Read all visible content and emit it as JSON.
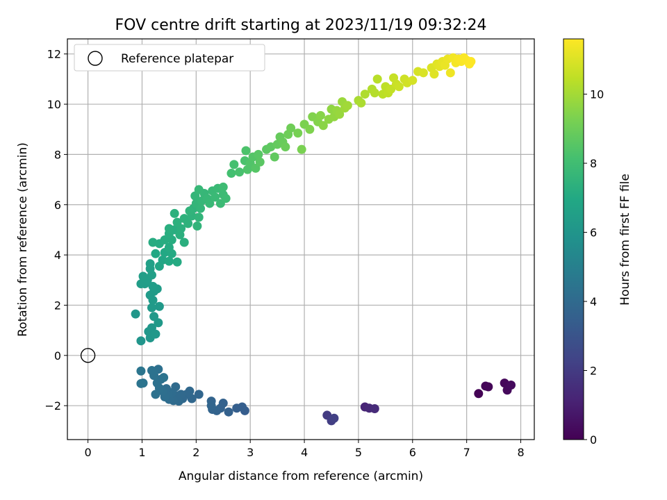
{
  "chart_data": {
    "type": "scatter",
    "title": "FOV centre drift starting at 2023/11/19 09:32:24",
    "xlabel": "Angular distance from reference (arcmin)",
    "ylabel": "Rotation from reference (arcmin)",
    "xlim": [
      -0.38,
      8.25
    ],
    "ylim": [
      -3.35,
      12.6
    ],
    "xticks": [
      0,
      1,
      2,
      3,
      4,
      5,
      6,
      7,
      8
    ],
    "yticks": [
      -2,
      0,
      2,
      4,
      6,
      8,
      10,
      12
    ],
    "grid": true,
    "legend": {
      "placement": "top-left",
      "entries": [
        "Reference platepar"
      ]
    },
    "reference_point": {
      "label": "Reference platepar",
      "x": 0,
      "y": 0,
      "marker": "open-circle"
    },
    "colorbar": {
      "label": "Hours from first FF file",
      "colormap": "viridis",
      "range": [
        0,
        11.6
      ],
      "ticks": [
        0,
        2,
        4,
        6,
        8,
        10
      ]
    },
    "series": [
      {
        "color_by": "hours",
        "points": [
          {
            "x": 7.22,
            "y": -1.52,
            "c": 0.05
          },
          {
            "x": 7.35,
            "y": -1.22,
            "c": 0.1
          },
          {
            "x": 7.4,
            "y": -1.25,
            "c": 0.15
          },
          {
            "x": 7.7,
            "y": -1.1,
            "c": 0.2
          },
          {
            "x": 7.75,
            "y": -1.38,
            "c": 0.25
          },
          {
            "x": 7.82,
            "y": -1.18,
            "c": 0.3
          },
          {
            "x": 5.12,
            "y": -2.05,
            "c": 1.2
          },
          {
            "x": 5.2,
            "y": -2.1,
            "c": 1.3
          },
          {
            "x": 5.3,
            "y": -2.12,
            "c": 1.4
          },
          {
            "x": 4.42,
            "y": -2.38,
            "c": 2.0
          },
          {
            "x": 4.5,
            "y": -2.6,
            "c": 2.1
          },
          {
            "x": 4.55,
            "y": -2.5,
            "c": 2.2
          },
          {
            "x": 2.9,
            "y": -2.2,
            "c": 3.4
          },
          {
            "x": 2.85,
            "y": -2.05,
            "c": 3.45
          },
          {
            "x": 2.75,
            "y": -2.1,
            "c": 3.5
          },
          {
            "x": 2.6,
            "y": -2.25,
            "c": 3.55
          },
          {
            "x": 2.5,
            "y": -1.9,
            "c": 3.6
          },
          {
            "x": 2.45,
            "y": -2.1,
            "c": 3.62
          },
          {
            "x": 2.38,
            "y": -2.2,
            "c": 3.65
          },
          {
            "x": 2.3,
            "y": -2.15,
            "c": 3.7
          },
          {
            "x": 2.28,
            "y": -1.82,
            "c": 3.72
          },
          {
            "x": 2.28,
            "y": -2.0,
            "c": 3.75
          },
          {
            "x": 2.05,
            "y": -1.55,
            "c": 3.8
          },
          {
            "x": 1.92,
            "y": -1.72,
            "c": 3.85
          },
          {
            "x": 1.88,
            "y": -1.42,
            "c": 3.88
          },
          {
            "x": 1.82,
            "y": -1.55,
            "c": 3.9
          },
          {
            "x": 1.75,
            "y": -1.72,
            "c": 3.92
          },
          {
            "x": 1.72,
            "y": -1.55,
            "c": 3.95
          },
          {
            "x": 1.68,
            "y": -1.82,
            "c": 3.98
          },
          {
            "x": 1.63,
            "y": -1.6,
            "c": 4.0
          },
          {
            "x": 1.62,
            "y": -1.25,
            "c": 4.02
          },
          {
            "x": 1.58,
            "y": -1.8,
            "c": 4.05
          },
          {
            "x": 1.55,
            "y": -1.48,
            "c": 4.08
          },
          {
            "x": 1.5,
            "y": -1.75,
            "c": 4.1
          },
          {
            "x": 1.48,
            "y": -1.52,
            "c": 4.12
          },
          {
            "x": 1.45,
            "y": -1.32,
            "c": 4.15
          },
          {
            "x": 1.42,
            "y": -1.65,
            "c": 4.18
          },
          {
            "x": 1.38,
            "y": -1.42,
            "c": 4.2
          },
          {
            "x": 1.35,
            "y": -0.95,
            "c": 4.22
          },
          {
            "x": 1.32,
            "y": -1.3,
            "c": 4.25
          },
          {
            "x": 1.3,
            "y": -0.55,
            "c": 4.28
          },
          {
            "x": 1.28,
            "y": -1.1,
            "c": 4.3
          },
          {
            "x": 1.25,
            "y": -1.55,
            "c": 4.32
          },
          {
            "x": 1.22,
            "y": -0.8,
            "c": 4.35
          },
          {
            "x": 1.18,
            "y": -0.6,
            "c": 4.38
          },
          {
            "x": 1.4,
            "y": -0.88,
            "c": 4.4
          },
          {
            "x": 1.02,
            "y": -1.1,
            "c": 4.42
          },
          {
            "x": 0.98,
            "y": -1.12,
            "c": 4.45
          },
          {
            "x": 0.98,
            "y": -0.62,
            "c": 4.48
          },
          {
            "x": 0.98,
            "y": 0.58,
            "c": 6.0
          },
          {
            "x": 0.88,
            "y": 1.65,
            "c": 6.05
          },
          {
            "x": 1.15,
            "y": 0.7,
            "c": 6.08
          },
          {
            "x": 1.12,
            "y": 0.95,
            "c": 6.1
          },
          {
            "x": 1.18,
            "y": 1.1,
            "c": 6.12
          },
          {
            "x": 1.25,
            "y": 0.85,
            "c": 6.15
          },
          {
            "x": 1.22,
            "y": 1.55,
            "c": 6.18
          },
          {
            "x": 1.3,
            "y": 1.3,
            "c": 6.2
          },
          {
            "x": 1.32,
            "y": 1.95,
            "c": 6.22
          },
          {
            "x": 1.18,
            "y": 1.9,
            "c": 6.25
          },
          {
            "x": 1.2,
            "y": 2.2,
            "c": 6.28
          },
          {
            "x": 1.15,
            "y": 2.4,
            "c": 6.3
          },
          {
            "x": 1.22,
            "y": 2.55,
            "c": 6.32
          },
          {
            "x": 1.28,
            "y": 2.65,
            "c": 6.35
          },
          {
            "x": 1.2,
            "y": 2.75,
            "c": 6.38
          },
          {
            "x": 1.05,
            "y": 2.85,
            "c": 6.4
          },
          {
            "x": 0.98,
            "y": 2.85,
            "c": 6.42
          },
          {
            "x": 1.1,
            "y": 3.0,
            "c": 6.45
          },
          {
            "x": 1.02,
            "y": 3.15,
            "c": 6.48
          },
          {
            "x": 1.18,
            "y": 3.2,
            "c": 6.5
          },
          {
            "x": 1.15,
            "y": 3.45,
            "c": 6.52
          },
          {
            "x": 1.15,
            "y": 3.65,
            "c": 6.55
          },
          {
            "x": 1.32,
            "y": 3.55,
            "c": 6.8
          },
          {
            "x": 1.38,
            "y": 3.8,
            "c": 6.85
          },
          {
            "x": 1.25,
            "y": 4.05,
            "c": 6.9
          },
          {
            "x": 1.42,
            "y": 4.1,
            "c": 6.95
          },
          {
            "x": 1.5,
            "y": 3.75,
            "c": 7.0
          },
          {
            "x": 1.55,
            "y": 4.05,
            "c": 7.02
          },
          {
            "x": 1.65,
            "y": 3.72,
            "c": 7.05
          },
          {
            "x": 1.5,
            "y": 4.3,
            "c": 7.08
          },
          {
            "x": 1.32,
            "y": 4.45,
            "c": 7.1
          },
          {
            "x": 1.2,
            "y": 4.5,
            "c": 7.12
          },
          {
            "x": 1.42,
            "y": 4.6,
            "c": 7.15
          },
          {
            "x": 1.55,
            "y": 4.6,
            "c": 7.18
          },
          {
            "x": 1.5,
            "y": 4.85,
            "c": 7.2
          },
          {
            "x": 1.6,
            "y": 5.0,
            "c": 7.22
          },
          {
            "x": 1.5,
            "y": 5.05,
            "c": 7.25
          },
          {
            "x": 1.78,
            "y": 4.5,
            "c": 7.28
          },
          {
            "x": 1.7,
            "y": 4.8,
            "c": 7.3
          },
          {
            "x": 1.72,
            "y": 5.05,
            "c": 7.32
          },
          {
            "x": 1.65,
            "y": 5.3,
            "c": 7.35
          },
          {
            "x": 1.6,
            "y": 5.65,
            "c": 7.38
          },
          {
            "x": 1.78,
            "y": 5.45,
            "c": 7.4
          },
          {
            "x": 1.85,
            "y": 5.25,
            "c": 7.42
          },
          {
            "x": 1.92,
            "y": 5.55,
            "c": 7.45
          },
          {
            "x": 1.95,
            "y": 5.85,
            "c": 7.48
          },
          {
            "x": 1.88,
            "y": 5.75,
            "c": 7.5
          },
          {
            "x": 2.02,
            "y": 5.15,
            "c": 7.52
          },
          {
            "x": 2.05,
            "y": 5.5,
            "c": 7.55
          },
          {
            "x": 2.0,
            "y": 6.05,
            "c": 7.58
          },
          {
            "x": 2.08,
            "y": 5.85,
            "c": 7.6
          },
          {
            "x": 1.98,
            "y": 6.35,
            "c": 7.62
          },
          {
            "x": 2.1,
            "y": 6.15,
            "c": 7.65
          },
          {
            "x": 2.15,
            "y": 6.45,
            "c": 7.68
          },
          {
            "x": 2.05,
            "y": 6.6,
            "c": 7.7
          },
          {
            "x": 2.2,
            "y": 6.25,
            "c": 7.72
          },
          {
            "x": 2.25,
            "y": 6.05,
            "c": 7.75
          },
          {
            "x": 2.3,
            "y": 6.55,
            "c": 7.78
          },
          {
            "x": 2.35,
            "y": 6.3,
            "c": 7.8
          },
          {
            "x": 2.4,
            "y": 6.65,
            "c": 7.82
          },
          {
            "x": 2.45,
            "y": 6.05,
            "c": 7.85
          },
          {
            "x": 2.5,
            "y": 6.4,
            "c": 7.88
          },
          {
            "x": 2.55,
            "y": 6.25,
            "c": 7.9
          },
          {
            "x": 2.5,
            "y": 6.7,
            "c": 7.92
          },
          {
            "x": 2.65,
            "y": 7.25,
            "c": 8.1
          },
          {
            "x": 2.7,
            "y": 7.6,
            "c": 8.15
          },
          {
            "x": 2.8,
            "y": 7.3,
            "c": 8.2
          },
          {
            "x": 2.9,
            "y": 7.75,
            "c": 8.25
          },
          {
            "x": 2.92,
            "y": 8.15,
            "c": 8.3
          },
          {
            "x": 2.95,
            "y": 7.4,
            "c": 8.35
          },
          {
            "x": 3.0,
            "y": 7.65,
            "c": 8.4
          },
          {
            "x": 3.05,
            "y": 7.9,
            "c": 8.45
          },
          {
            "x": 3.1,
            "y": 7.45,
            "c": 8.5
          },
          {
            "x": 3.15,
            "y": 8.0,
            "c": 8.55
          },
          {
            "x": 3.18,
            "y": 7.7,
            "c": 8.6
          },
          {
            "x": 3.3,
            "y": 8.2,
            "c": 8.65
          },
          {
            "x": 3.38,
            "y": 8.3,
            "c": 8.7
          },
          {
            "x": 3.45,
            "y": 7.9,
            "c": 8.75
          },
          {
            "x": 3.5,
            "y": 8.4,
            "c": 8.8
          },
          {
            "x": 3.55,
            "y": 8.7,
            "c": 8.85
          },
          {
            "x": 3.6,
            "y": 8.5,
            "c": 8.9
          },
          {
            "x": 3.65,
            "y": 8.3,
            "c": 8.95
          },
          {
            "x": 3.7,
            "y": 8.8,
            "c": 9.0
          },
          {
            "x": 3.75,
            "y": 9.05,
            "c": 9.05
          },
          {
            "x": 3.88,
            "y": 8.85,
            "c": 9.2
          },
          {
            "x": 3.95,
            "y": 8.2,
            "c": 9.25
          },
          {
            "x": 4.0,
            "y": 9.2,
            "c": 9.3
          },
          {
            "x": 4.1,
            "y": 9.0,
            "c": 9.35
          },
          {
            "x": 4.15,
            "y": 9.5,
            "c": 9.4
          },
          {
            "x": 4.25,
            "y": 9.3,
            "c": 9.45
          },
          {
            "x": 4.3,
            "y": 9.55,
            "c": 9.5
          },
          {
            "x": 4.35,
            "y": 9.15,
            "c": 9.55
          },
          {
            "x": 4.45,
            "y": 9.4,
            "c": 9.6
          },
          {
            "x": 4.5,
            "y": 9.8,
            "c": 9.65
          },
          {
            "x": 4.55,
            "y": 9.5,
            "c": 9.7
          },
          {
            "x": 4.6,
            "y": 9.75,
            "c": 9.75
          },
          {
            "x": 4.65,
            "y": 9.6,
            "c": 9.8
          },
          {
            "x": 4.7,
            "y": 10.1,
            "c": 9.85
          },
          {
            "x": 4.75,
            "y": 9.85,
            "c": 9.9
          },
          {
            "x": 4.8,
            "y": 9.95,
            "c": 9.95
          },
          {
            "x": 5.0,
            "y": 10.15,
            "c": 10.1
          },
          {
            "x": 5.05,
            "y": 10.05,
            "c": 10.15
          },
          {
            "x": 5.12,
            "y": 10.4,
            "c": 10.2
          },
          {
            "x": 5.25,
            "y": 10.6,
            "c": 10.25
          },
          {
            "x": 5.3,
            "y": 10.45,
            "c": 10.3
          },
          {
            "x": 5.35,
            "y": 11.0,
            "c": 10.35
          },
          {
            "x": 5.45,
            "y": 10.4,
            "c": 10.4
          },
          {
            "x": 5.5,
            "y": 10.7,
            "c": 10.45
          },
          {
            "x": 5.55,
            "y": 10.45,
            "c": 10.5
          },
          {
            "x": 5.6,
            "y": 10.6,
            "c": 10.55
          },
          {
            "x": 5.65,
            "y": 11.05,
            "c": 10.6
          },
          {
            "x": 5.7,
            "y": 10.8,
            "c": 10.65
          },
          {
            "x": 5.75,
            "y": 10.7,
            "c": 10.7
          },
          {
            "x": 5.85,
            "y": 11.0,
            "c": 10.75
          },
          {
            "x": 5.9,
            "y": 10.85,
            "c": 10.8
          },
          {
            "x": 6.0,
            "y": 10.95,
            "c": 10.85
          },
          {
            "x": 6.1,
            "y": 11.3,
            "c": 10.9
          },
          {
            "x": 6.2,
            "y": 11.25,
            "c": 10.95
          },
          {
            "x": 6.35,
            "y": 11.45,
            "c": 11.0
          },
          {
            "x": 6.4,
            "y": 11.2,
            "c": 11.05
          },
          {
            "x": 6.45,
            "y": 11.6,
            "c": 11.1
          },
          {
            "x": 6.5,
            "y": 11.5,
            "c": 11.15
          },
          {
            "x": 6.55,
            "y": 11.7,
            "c": 11.2
          },
          {
            "x": 6.6,
            "y": 11.55,
            "c": 11.25
          },
          {
            "x": 6.65,
            "y": 11.8,
            "c": 11.3
          },
          {
            "x": 6.7,
            "y": 11.25,
            "c": 11.35
          },
          {
            "x": 6.75,
            "y": 11.85,
            "c": 11.4
          },
          {
            "x": 6.8,
            "y": 11.65,
            "c": 11.45
          },
          {
            "x": 6.85,
            "y": 11.8,
            "c": 11.5
          },
          {
            "x": 6.9,
            "y": 11.7,
            "c": 11.52
          },
          {
            "x": 6.95,
            "y": 11.85,
            "c": 11.55
          },
          {
            "x": 7.0,
            "y": 11.75,
            "c": 11.57
          },
          {
            "x": 7.05,
            "y": 11.6,
            "c": 11.58
          },
          {
            "x": 7.08,
            "y": 11.7,
            "c": 11.6
          }
        ]
      }
    ]
  }
}
